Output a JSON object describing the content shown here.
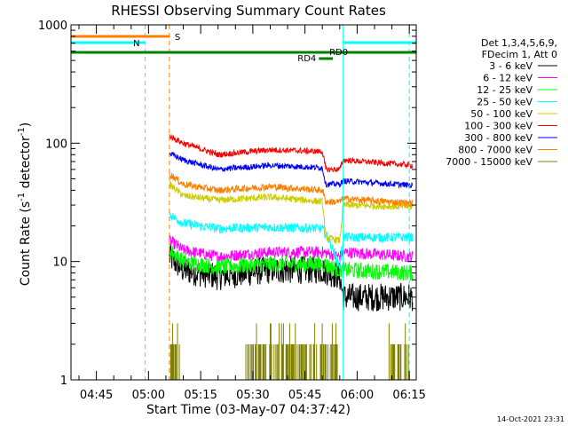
{
  "chart_data": {
    "type": "line",
    "title": "RHESSI Observing Summary Count Rates",
    "xlabel": "Start Time (03-May-07 04:37:42)",
    "ylabel_main": "Count Rate (s",
    "ylabel_sup1": "-1",
    "ylabel_mid": " detector",
    "ylabel_sup2": "-1",
    "ylabel_end": ")",
    "y_scale": "log",
    "ylim": [
      1,
      1000
    ],
    "x_range_minutes": [
      "04:37:42",
      "06:17:00"
    ],
    "x_ticks": [
      "04:45",
      "05:00",
      "05:15",
      "05:30",
      "05:45",
      "06:00",
      "06:15"
    ],
    "y_ticks": [
      "1",
      "10",
      "100",
      "1000"
    ],
    "legend": {
      "header1": "Det 1,3,4,5,6,9,",
      "header2": "FDecim 1, Att 0",
      "entries": [
        {
          "label": "3 - 6 keV",
          "color": "#000000"
        },
        {
          "label": "6 - 12 keV",
          "color": "#ff00ff"
        },
        {
          "label": "12 - 25 keV",
          "color": "#00ff00"
        },
        {
          "label": "25 - 50 keV",
          "color": "#00ffff"
        },
        {
          "label": "50 - 100 keV",
          "color": "#cccc00"
        },
        {
          "label": "100 - 300 keV",
          "color": "#ff0000"
        },
        {
          "label": "300 - 800 keV",
          "color": "#0000ff"
        },
        {
          "label": "800 - 7000 keV",
          "color": "#ff8000"
        },
        {
          "label": "7000 - 15000 keV",
          "color": "#808000"
        }
      ]
    },
    "series": [
      {
        "name": "3 - 6 keV",
        "color": "#000000",
        "noise": 0.12,
        "points": [
          [
            "05:06",
            11
          ],
          [
            "05:10",
            8.5
          ],
          [
            "05:20",
            7.5
          ],
          [
            "05:35",
            8.5
          ],
          [
            "05:50",
            8.5
          ],
          [
            "05:55",
            7.5
          ],
          [
            "05:56",
            5
          ],
          [
            "06:16",
            5
          ]
        ]
      },
      {
        "name": "6 - 12 keV",
        "color": "#ff00ff",
        "noise": 0.05,
        "points": [
          [
            "05:06",
            15
          ],
          [
            "05:10",
            12.5
          ],
          [
            "05:20",
            11
          ],
          [
            "05:35",
            12
          ],
          [
            "05:50",
            12
          ],
          [
            "05:55",
            11
          ],
          [
            "05:56",
            12
          ],
          [
            "06:16",
            11
          ]
        ]
      },
      {
        "name": "12 - 25 keV",
        "color": "#00ff00",
        "noise": 0.07,
        "points": [
          [
            "05:06",
            12.5
          ],
          [
            "05:10",
            10
          ],
          [
            "05:20",
            9
          ],
          [
            "05:35",
            9.5
          ],
          [
            "05:50",
            9.5
          ],
          [
            "05:55",
            8.5
          ],
          [
            "05:56",
            8.5
          ],
          [
            "06:16",
            8
          ]
        ]
      },
      {
        "name": "25 - 50 keV",
        "color": "#00ffff",
        "noise": 0.04,
        "points": [
          [
            "05:06",
            25
          ],
          [
            "05:10",
            21
          ],
          [
            "05:20",
            19
          ],
          [
            "05:35",
            19.5
          ],
          [
            "05:50",
            19
          ],
          [
            "05:52",
            15
          ],
          [
            "05:55",
            9
          ],
          [
            "05:56",
            16
          ],
          [
            "06:16",
            16
          ]
        ]
      },
      {
        "name": "50 - 100 keV",
        "color": "#cccc00",
        "noise": 0.03,
        "points": [
          [
            "05:06",
            45
          ],
          [
            "05:10",
            36
          ],
          [
            "05:20",
            33
          ],
          [
            "05:35",
            35
          ],
          [
            "05:50",
            32
          ],
          [
            "05:51",
            16
          ],
          [
            "05:55",
            15
          ],
          [
            "05:56",
            30
          ],
          [
            "06:16",
            29
          ]
        ]
      },
      {
        "name": "100 - 300 keV",
        "color": "#ff0000",
        "noise": 0.025,
        "points": [
          [
            "05:06",
            115
          ],
          [
            "05:10",
            100
          ],
          [
            "05:20",
            80
          ],
          [
            "05:35",
            88
          ],
          [
            "05:50",
            85
          ],
          [
            "05:51",
            60
          ],
          [
            "05:55",
            60
          ],
          [
            "05:56",
            72
          ],
          [
            "06:16",
            65
          ]
        ]
      },
      {
        "name": "300 - 800 keV",
        "color": "#0000ff",
        "noise": 0.025,
        "points": [
          [
            "05:06",
            82
          ],
          [
            "05:10",
            72
          ],
          [
            "05:20",
            60
          ],
          [
            "05:35",
            65
          ],
          [
            "05:50",
            62
          ],
          [
            "05:51",
            45
          ],
          [
            "05:55",
            45
          ],
          [
            "05:56",
            48
          ],
          [
            "06:16",
            44
          ]
        ]
      },
      {
        "name": "800 - 7000 keV",
        "color": "#ff8000",
        "noise": 0.03,
        "points": [
          [
            "05:06",
            55
          ],
          [
            "05:10",
            45
          ],
          [
            "05:20",
            40
          ],
          [
            "05:35",
            43
          ],
          [
            "05:50",
            40
          ],
          [
            "05:51",
            32
          ],
          [
            "05:55",
            32
          ],
          [
            "05:56",
            34
          ],
          [
            "06:16",
            31
          ]
        ]
      }
    ],
    "spikes": {
      "name": "7000 - 15000 keV",
      "color": "#808000",
      "ranges": [
        [
          "05:06",
          "05:09"
        ],
        [
          "05:28",
          "05:55"
        ],
        [
          "06:09",
          "06:15"
        ]
      ]
    },
    "vlines": [
      {
        "time": "04:59",
        "color": "#00ffff",
        "style": "dashed"
      },
      {
        "time": "05:06",
        "color": "#ff8000",
        "style": "dashed"
      },
      {
        "time": "05:56",
        "color": "#00ffff",
        "style": "solid"
      },
      {
        "time": "06:15",
        "color": "#00ffff",
        "style": "dashed"
      }
    ],
    "bars": [
      {
        "label": "S",
        "color": "#ff8000",
        "from": "04:37",
        "to": "05:06",
        "level": 1
      },
      {
        "label": "N",
        "color": "#00ffff",
        "from": "04:37",
        "to": "04:59",
        "level": 2
      },
      {
        "label": "",
        "color": "#00ffff",
        "from": "05:56",
        "to": "06:17",
        "level": 2
      },
      {
        "label": "RD0",
        "color": "#008000",
        "from": "04:37",
        "to": "06:17",
        "level": 3
      },
      {
        "label": "RD4",
        "color": "#008000",
        "from": "05:49",
        "to": "05:53",
        "level": 4
      }
    ]
  },
  "footer": {
    "date": "14-Oct-2021 23:31"
  }
}
